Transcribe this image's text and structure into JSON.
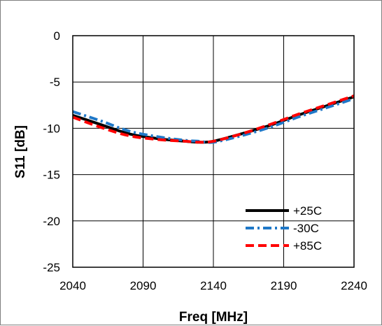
{
  "chart_data": {
    "type": "line",
    "title": "",
    "xlabel": "Freq [MHz]",
    "ylabel": "S11 [dB]",
    "xlim": [
      2040,
      2240
    ],
    "ylim": [
      -25,
      0
    ],
    "xticks": [
      2040,
      2090,
      2140,
      2190,
      2240
    ],
    "yticks": [
      0,
      -5,
      -10,
      -15,
      -20,
      -25
    ],
    "grid": true,
    "legend_position": "bottom-right",
    "series": [
      {
        "name": "+25C",
        "color": "#000000",
        "style": "solid",
        "x": [
          2040,
          2060,
          2080,
          2100,
          2120,
          2130,
          2140,
          2160,
          2180,
          2200,
          2220,
          2240
        ],
        "y": [
          -8.6,
          -9.6,
          -10.6,
          -11.1,
          -11.4,
          -11.5,
          -11.4,
          -10.6,
          -9.7,
          -8.6,
          -7.6,
          -6.6
        ]
      },
      {
        "name": "-30C",
        "color": "#1f78c8",
        "style": "dashdot",
        "x": [
          2040,
          2060,
          2080,
          2100,
          2120,
          2130,
          2140,
          2160,
          2180,
          2200,
          2220,
          2240
        ],
        "y": [
          -8.2,
          -9.2,
          -10.3,
          -10.9,
          -11.3,
          -11.4,
          -11.5,
          -10.8,
          -9.9,
          -8.8,
          -7.8,
          -6.8
        ]
      },
      {
        "name": "+85C",
        "color": "#ff0000",
        "style": "dashed",
        "x": [
          2040,
          2060,
          2080,
          2100,
          2120,
          2130,
          2140,
          2160,
          2180,
          2200,
          2220,
          2240
        ],
        "y": [
          -8.8,
          -9.9,
          -10.8,
          -11.2,
          -11.4,
          -11.5,
          -11.4,
          -10.6,
          -9.6,
          -8.5,
          -7.5,
          -6.5
        ]
      }
    ]
  }
}
